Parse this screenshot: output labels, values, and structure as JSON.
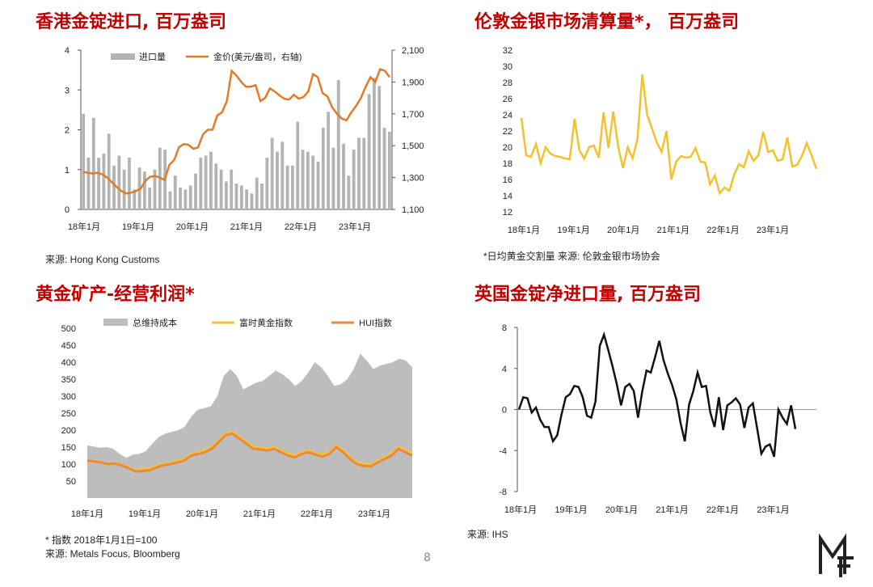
{
  "panels": {
    "hk": {
      "title": "香港金锭进口, 百万盎司",
      "source": "来源: Hong Kong Customs"
    },
    "london": {
      "title": "伦敦金银市场清算量*， 百万盎司",
      "source": "*日均黄金交割量 来源: 伦敦金银市场协会"
    },
    "miners": {
      "title": "黄金矿产-经营利润*",
      "note": "* 指数 2018年1月1日=100",
      "source": "来源: Metals Focus, Bloomberg"
    },
    "uk": {
      "title": "英国金锭净进口量, 百万盎司",
      "source": "来源: IHS"
    }
  },
  "page_number": "8",
  "logo_icon": "mf-monogram-logo",
  "chart_data": [
    {
      "id": "hk",
      "type": "bar",
      "x_ticks": [
        "18年1月",
        "19年1月",
        "20年1月",
        "21年1月",
        "22年1月",
        "23年1月"
      ],
      "yleft_ticks": [
        "0",
        "1",
        "2",
        "3",
        "4"
      ],
      "yright_ticks": [
        "1,100",
        "1,300",
        "1,500",
        "1,700",
        "1,900",
        "2,100"
      ],
      "ylim_left": [
        0,
        4
      ],
      "ylim_right": [
        1100,
        2100
      ],
      "legend_placement": "top",
      "colors": {
        "bars": "#b3b3b3",
        "line": "#e07b2a"
      },
      "series": [
        {
          "name": "进口量",
          "kind": "bar",
          "axis": "left",
          "values": [
            2.4,
            1.3,
            2.3,
            1.3,
            1.4,
            1.9,
            1.1,
            1.35,
            1.0,
            1.3,
            0.5,
            1.05,
            0.95,
            0.55,
            1.0,
            1.55,
            1.5,
            0.45,
            0.85,
            0.55,
            0.5,
            0.6,
            0.9,
            1.3,
            1.35,
            1.45,
            1.15,
            1.0,
            0.7,
            1.0,
            0.65,
            0.6,
            0.5,
            0.4,
            0.8,
            0.65,
            1.3,
            1.8,
            1.45,
            1.7,
            1.1,
            1.1,
            2.2,
            1.5,
            1.45,
            1.35,
            1.2,
            2.05,
            2.45,
            1.55,
            3.25,
            1.65,
            0.85,
            1.5,
            1.8,
            1.8,
            2.9,
            3.3,
            3.1,
            2.05,
            1.95
          ]
        },
        {
          "name": "金价(美元/盎司，右轴)",
          "kind": "line",
          "axis": "right",
          "values": [
            1335,
            1330,
            1325,
            1330,
            1320,
            1300,
            1270,
            1240,
            1215,
            1200,
            1205,
            1215,
            1230,
            1280,
            1305,
            1310,
            1300,
            1285,
            1380,
            1410,
            1490,
            1510,
            1505,
            1480,
            1490,
            1570,
            1600,
            1600,
            1690,
            1710,
            1780,
            1970,
            1940,
            1900,
            1870,
            1870,
            1880,
            1780,
            1800,
            1860,
            1840,
            1815,
            1795,
            1790,
            1820,
            1795,
            1805,
            1840,
            1950,
            1930,
            1830,
            1810,
            1740,
            1700,
            1670,
            1660,
            1710,
            1750,
            1800,
            1870,
            1930,
            1900,
            1980,
            1970,
            1930
          ]
        }
      ]
    },
    {
      "id": "london",
      "type": "line",
      "x_ticks": [
        "18年1月",
        "19年1月",
        "20年1月",
        "21年1月",
        "22年1月",
        "23年1月"
      ],
      "y_ticks": [
        "12",
        "14",
        "16",
        "18",
        "20",
        "22",
        "24",
        "26",
        "28",
        "30",
        "32"
      ],
      "ylim": [
        12,
        32
      ],
      "colors": {
        "line": "#f2c12e"
      },
      "series": [
        {
          "name": "",
          "values": [
            23.6,
            19.0,
            18.8,
            20.4,
            18.0,
            20.0,
            19.2,
            18.9,
            18.8,
            18.6,
            18.5,
            23.5,
            19.6,
            18.6,
            20.0,
            20.2,
            18.7,
            24.3,
            19.9,
            24.4,
            20.1,
            17.4,
            20.0,
            18.6,
            21.0,
            29.0,
            24.0,
            22.3,
            20.6,
            19.4,
            22.0,
            16.0,
            18.2,
            18.9,
            18.7,
            18.8,
            19.9,
            18.2,
            18.1,
            15.4,
            16.5,
            14.3,
            15.0,
            14.6,
            16.6,
            17.9,
            17.5,
            19.5,
            18.3,
            19.0,
            21.9,
            19.4,
            19.6,
            18.3,
            18.5,
            21.2,
            17.6,
            17.8,
            18.9,
            20.5,
            19.0,
            17.3
          ]
        }
      ]
    },
    {
      "id": "miners",
      "type": "area",
      "x_ticks": [
        "18年1月",
        "19年1月",
        "20年1月",
        "21年1月",
        "22年1月",
        "23年1月"
      ],
      "y_ticks": [
        "50",
        "100",
        "150",
        "200",
        "250",
        "300",
        "350",
        "400",
        "450",
        "500"
      ],
      "ylim": [
        0,
        500
      ],
      "legend_placement": "top",
      "colors": {
        "area": "#bdbdbd",
        "gold_index": "#f6c23a",
        "hui": "#e98a3a"
      },
      "series": [
        {
          "name": "总维持成本",
          "kind": "area",
          "values": [
            155,
            152,
            148,
            150,
            145,
            130,
            118,
            128,
            130,
            138,
            160,
            180,
            190,
            195,
            200,
            210,
            240,
            260,
            265,
            270,
            300,
            360,
            380,
            360,
            320,
            330,
            340,
            345,
            360,
            375,
            365,
            350,
            330,
            345,
            370,
            400,
            385,
            360,
            330,
            335,
            350,
            380,
            425,
            405,
            380,
            390,
            395,
            400,
            410,
            405,
            385
          ]
        },
        {
          "name": "富时黄金指数",
          "kind": "line",
          "values": [
            105,
            110,
            106,
            100,
            104,
            98,
            90,
            82,
            85,
            87,
            95,
            100,
            103,
            110,
            115,
            130,
            135,
            140,
            150,
            170,
            190,
            195,
            180,
            165,
            150,
            148,
            145,
            150,
            140,
            130,
            125,
            135,
            140,
            132,
            128,
            135,
            155,
            140,
            120,
            105,
            100,
            98,
            110,
            120,
            130,
            150,
            140,
            135
          ]
        },
        {
          "name": "HUI指数",
          "kind": "line",
          "values": [
            110,
            108,
            105,
            100,
            102,
            96,
            88,
            78,
            80,
            82,
            90,
            97,
            100,
            105,
            110,
            125,
            130,
            135,
            145,
            165,
            185,
            190,
            175,
            160,
            145,
            143,
            140,
            145,
            135,
            125,
            120,
            130,
            135,
            128,
            122,
            130,
            150,
            135,
            115,
            100,
            95,
            93,
            105,
            115,
            125,
            145,
            135,
            125
          ]
        }
      ]
    },
    {
      "id": "uk",
      "type": "line",
      "x_ticks": [
        "18年1月",
        "19年1月",
        "20年1月",
        "21年1月",
        "22年1月",
        "23年1月"
      ],
      "y_ticks": [
        "8",
        "4",
        "0",
        "-4",
        "-8"
      ],
      "ylim": [
        -8,
        8
      ],
      "colors": {
        "line": "#111111",
        "zero": "#999999"
      },
      "series": [
        {
          "name": "",
          "values": [
            0.0,
            1.2,
            1.1,
            -0.3,
            0.2,
            -1.0,
            -1.7,
            -1.7,
            -3.1,
            -2.5,
            -0.5,
            1.2,
            1.5,
            2.3,
            2.2,
            1.2,
            -0.6,
            -0.8,
            0.8,
            6.2,
            7.3,
            5.8,
            4.2,
            2.5,
            0.4,
            2.2,
            2.5,
            1.8,
            -0.8,
            1.8,
            3.8,
            3.6,
            5.1,
            6.7,
            4.8,
            3.5,
            2.4,
            1.0,
            -1.3,
            -3.1,
            0.5,
            1.8,
            3.6,
            2.2,
            2.3,
            -0.3,
            -1.7,
            1.2,
            -2.0,
            0.4,
            0.7,
            1.1,
            0.5,
            -1.8,
            0.2,
            0.6,
            -1.8,
            -4.3,
            -3.6,
            -3.4,
            -4.6,
            0.0,
            -0.8,
            -1.4,
            0.4,
            -1.9
          ]
        }
      ]
    }
  ]
}
